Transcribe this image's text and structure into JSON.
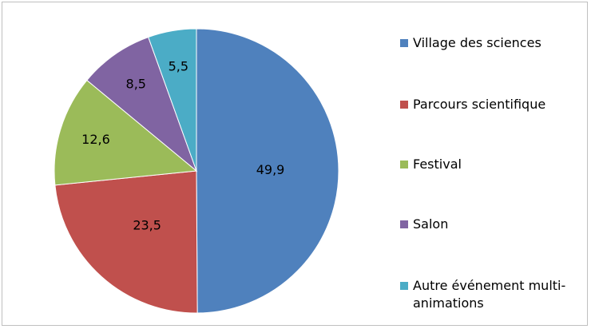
{
  "chart_data": {
    "type": "pie",
    "categories": [
      "Village des sciences",
      "Parcours scientifique",
      "Festival",
      "Salon",
      "Autre événement multi-animations"
    ],
    "values": [
      49.9,
      23.5,
      12.6,
      8.5,
      5.5
    ],
    "value_labels": [
      "49,9",
      "23,5",
      "12,6",
      "8,5",
      "5,5"
    ],
    "colors": [
      "#4f81bd",
      "#c0504d",
      "#9bbb59",
      "#8064a2",
      "#4bacc6"
    ],
    "legend": "right"
  }
}
